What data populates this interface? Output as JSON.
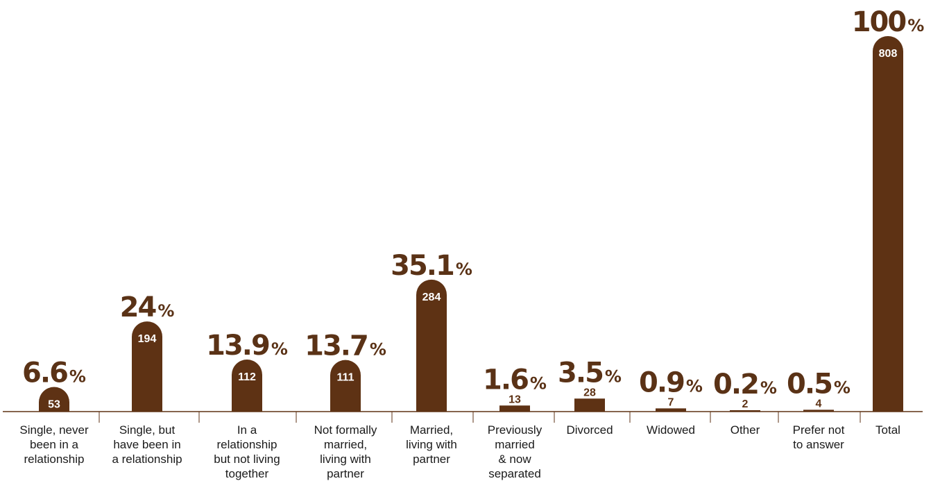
{
  "chart_data": {
    "type": "bar",
    "title": "",
    "xlabel": "",
    "ylabel": "",
    "ylim": [
      0,
      808
    ],
    "grid": false,
    "legend": "none",
    "bar_color": "#5e3214",
    "inside_label_color": "#ffffff",
    "outside_label_color": "#5e3214",
    "categories": [
      {
        "lines": [
          "Single, never",
          "been in a",
          "relationship"
        ]
      },
      {
        "lines": [
          "Single, but",
          "have been in",
          "a relationship"
        ]
      },
      {
        "lines": [
          "In a",
          "relationship",
          "but not living",
          "together"
        ]
      },
      {
        "lines": [
          "Not formally",
          "married,",
          "living with",
          "partner"
        ]
      },
      {
        "lines": [
          "Married,",
          "living with",
          "partner"
        ]
      },
      {
        "lines": [
          "Previously",
          "married",
          "& now",
          "separated"
        ]
      },
      {
        "lines": [
          "Divorced"
        ]
      },
      {
        "lines": [
          "Widowed"
        ]
      },
      {
        "lines": [
          "Other"
        ]
      },
      {
        "lines": [
          "Prefer not",
          "to answer"
        ]
      },
      {
        "lines": [
          "Total"
        ]
      }
    ],
    "series": [
      {
        "values": [
          53,
          194,
          112,
          111,
          284,
          13,
          28,
          7,
          2,
          4,
          808
        ],
        "count_labels": [
          "53",
          "194",
          "112",
          "111",
          "284",
          "13",
          "28",
          "7",
          "2",
          "4",
          "808"
        ],
        "percent_labels": [
          "6.6",
          "24",
          "13.9",
          "13.7",
          "35.1",
          "1.6",
          "3.5",
          "0.9",
          "0.2",
          "0.5",
          "100"
        ],
        "percent_symbol": "%"
      }
    ]
  }
}
